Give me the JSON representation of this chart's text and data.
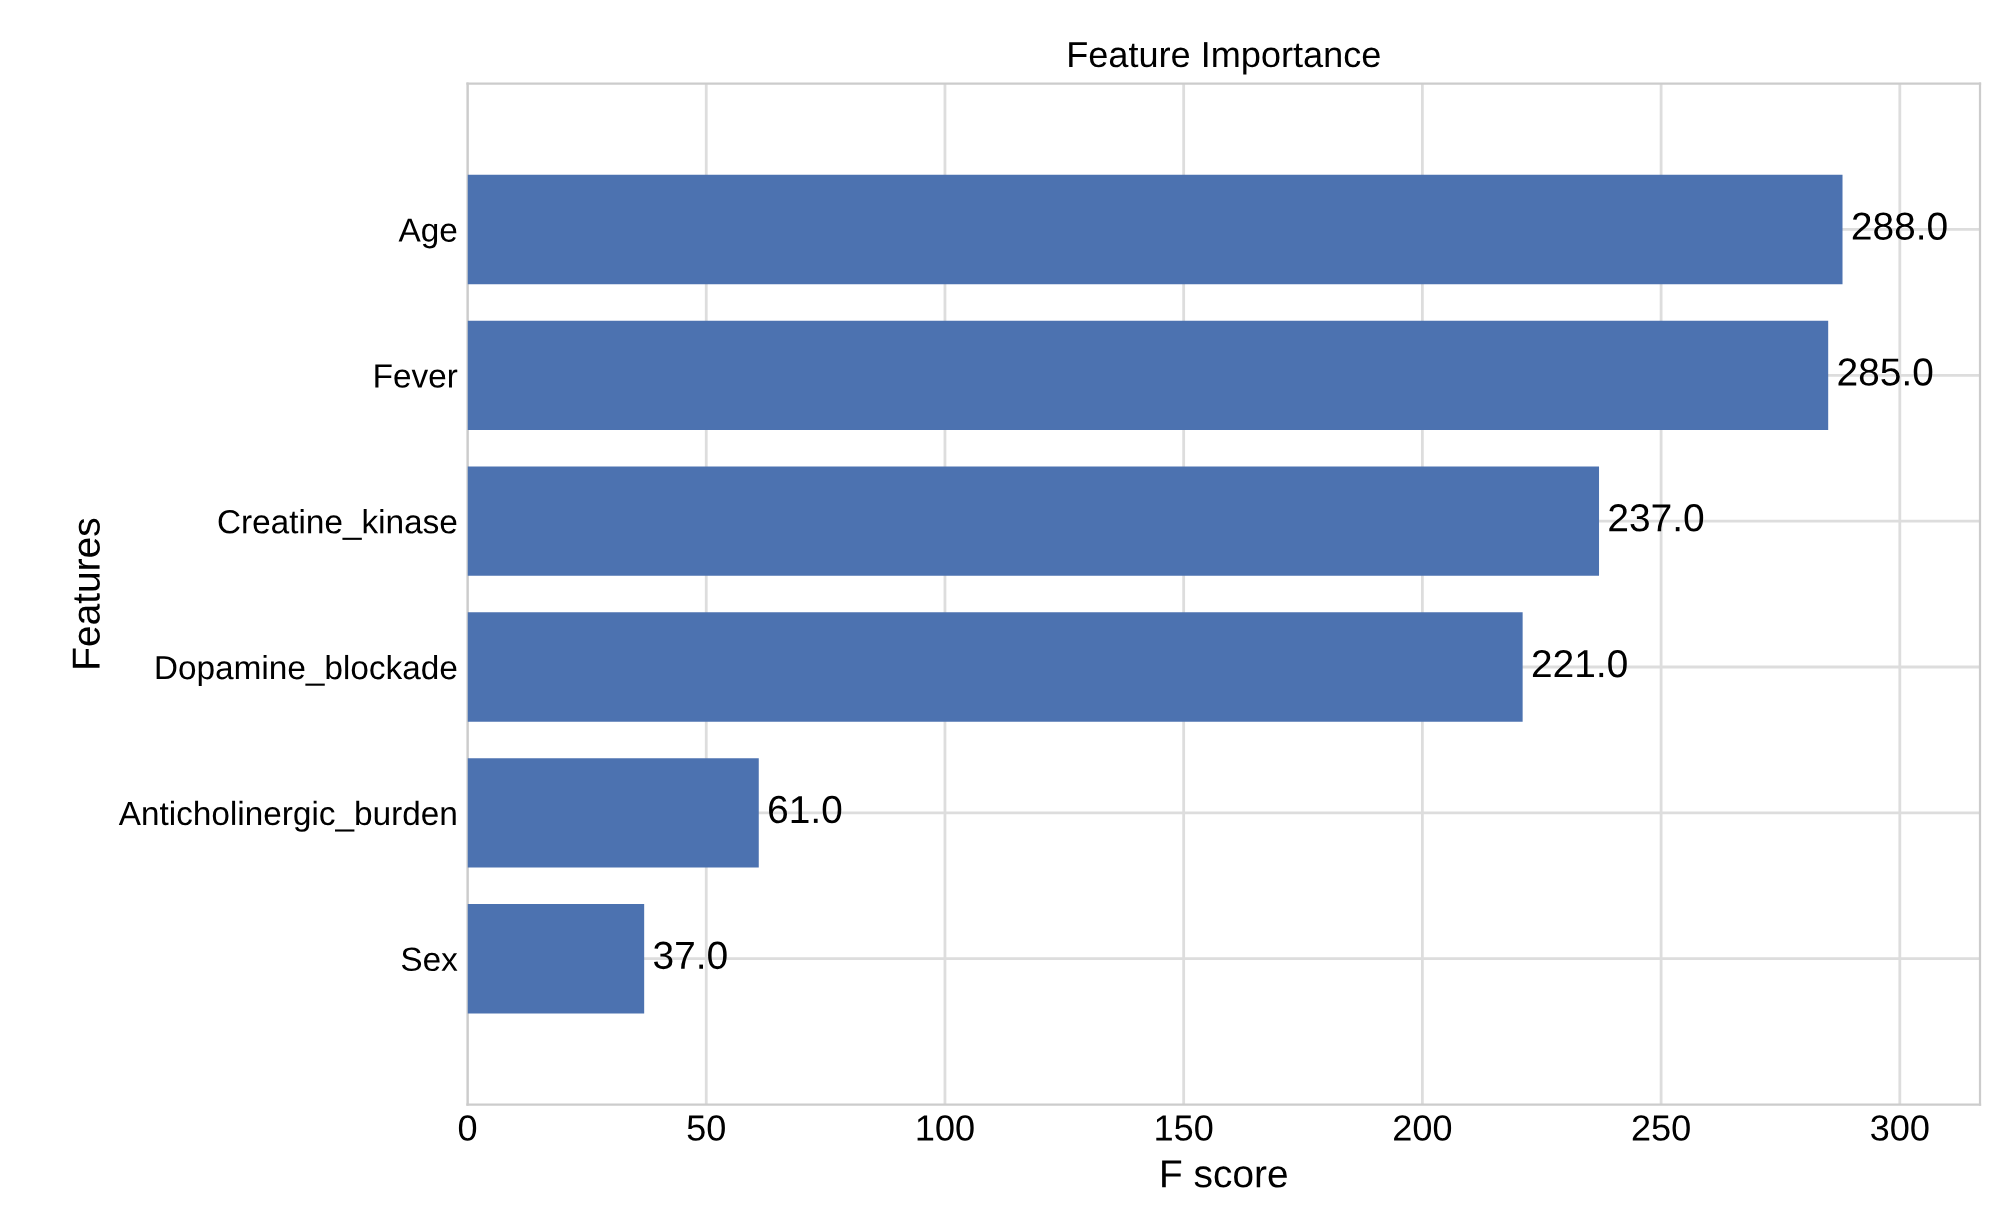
{
  "chart_data": {
    "type": "bar",
    "orientation": "horizontal",
    "title": "Feature Importance",
    "xlabel": "F score",
    "ylabel": "Features",
    "categories": [
      "Age",
      "Fever",
      "Creatine_kinase",
      "Dopamine_blockade",
      "Anticholinergic_burden",
      "Sex"
    ],
    "values": [
      288,
      285,
      237,
      221,
      61,
      37
    ],
    "value_labels": [
      "288.0",
      "285.0",
      "237.0",
      "221.0",
      "61.0",
      "37.0"
    ],
    "color": "#4c72b0",
    "xlim": [
      0,
      316.8
    ],
    "xticks": [
      0,
      50,
      100,
      150,
      200,
      250,
      300
    ],
    "grid": true
  }
}
